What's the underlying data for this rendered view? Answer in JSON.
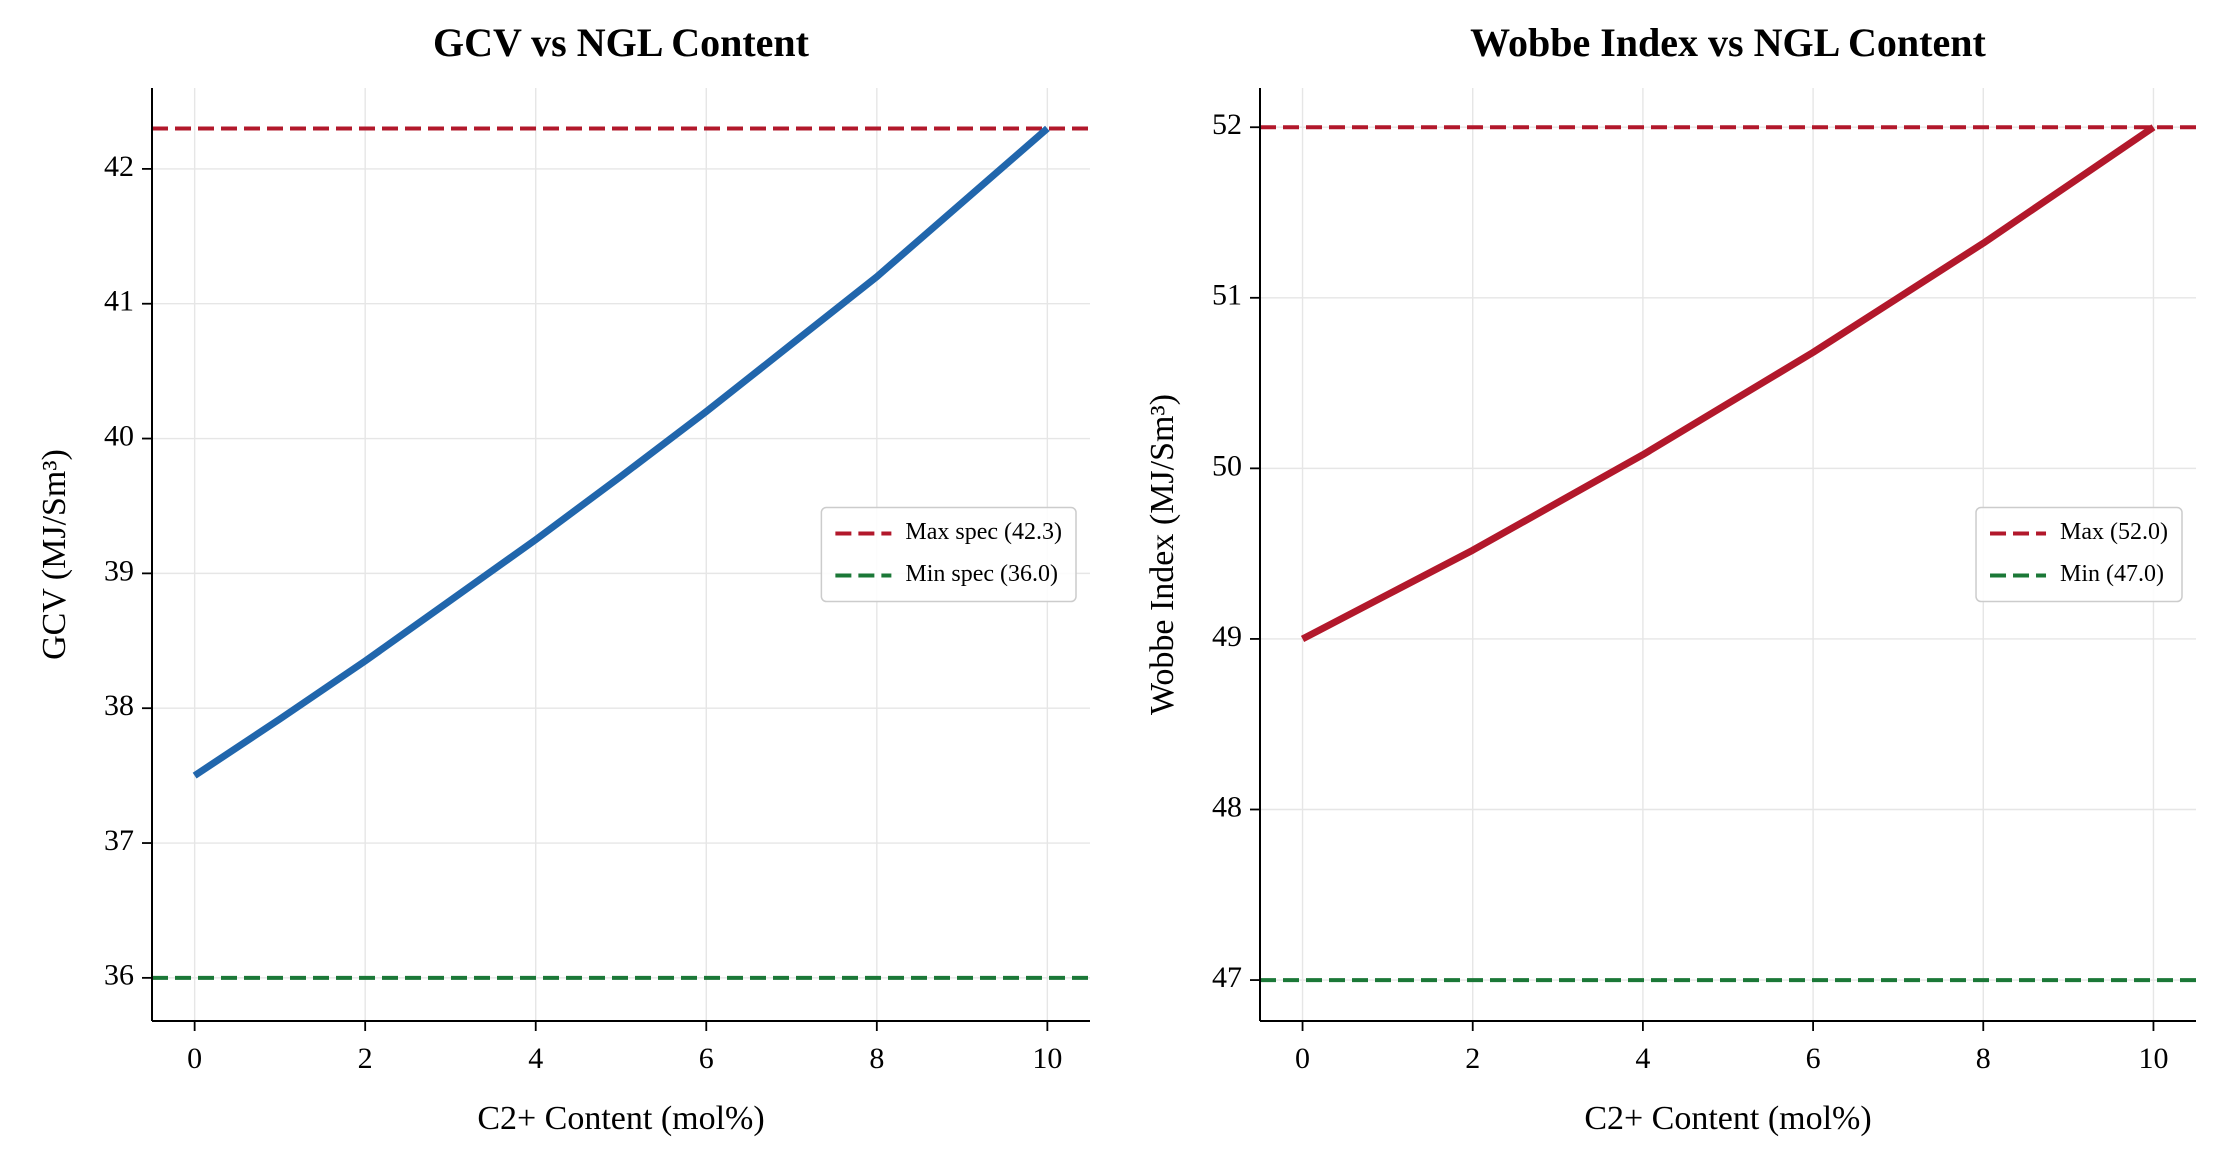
{
  "chart_data": [
    {
      "type": "line",
      "title": "GCV vs NGL Content",
      "xlabel": "C2+ Content (mol%)",
      "ylabel": "GCV (MJ/Sm³)",
      "x": [
        0,
        1,
        2,
        3,
        4,
        5,
        6,
        7,
        8,
        9,
        10
      ],
      "series": [
        {
          "color": "#2166ac",
          "values": [
            37.5,
            37.92,
            38.35,
            38.8,
            39.25,
            39.72,
            40.2,
            40.7,
            41.2,
            41.75,
            42.3
          ]
        }
      ],
      "hlines": [
        {
          "name": "Max spec (42.3)",
          "value": 42.3,
          "color": "#b2182b"
        },
        {
          "name": "Min spec (36.0)",
          "value": 36.0,
          "color": "#1b7837"
        }
      ],
      "xlim": [
        -0.5,
        10.5
      ],
      "xticks": [
        0,
        2,
        4,
        6,
        8,
        10
      ],
      "ylim": [
        35.68,
        42.6
      ],
      "yticks": [
        36,
        37,
        38,
        39,
        40,
        41,
        42
      ],
      "grid": true,
      "legend": "center right"
    },
    {
      "type": "line",
      "title": "Wobbe Index vs NGL Content",
      "xlabel": "C2+ Content (mol%)",
      "ylabel": "Wobbe Index (MJ/Sm³)",
      "x": [
        0,
        1,
        2,
        3,
        4,
        5,
        6,
        7,
        8,
        9,
        10
      ],
      "series": [
        {
          "color": "#b2182b",
          "values": [
            49.0,
            49.26,
            49.52,
            49.8,
            50.08,
            50.38,
            50.68,
            51.0,
            51.32,
            51.66,
            52.0
          ]
        }
      ],
      "hlines": [
        {
          "name": "Max (52.0)",
          "value": 52.0,
          "color": "#b2182b"
        },
        {
          "name": "Min (47.0)",
          "value": 47.0,
          "color": "#1b7837"
        }
      ],
      "xlim": [
        -0.5,
        10.5
      ],
      "xticks": [
        0,
        2,
        4,
        6,
        8,
        10
      ],
      "ylim": [
        46.76,
        52.23
      ],
      "yticks": [
        47,
        48,
        49,
        50,
        51,
        52
      ],
      "grid": true,
      "legend": "center right"
    }
  ]
}
